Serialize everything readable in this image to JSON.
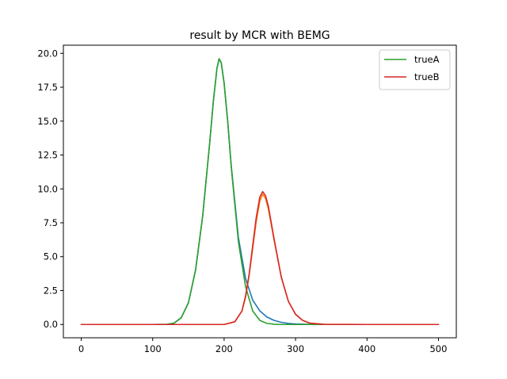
{
  "chart_data": {
    "type": "line",
    "title": "result by MCR with BEMG",
    "xlabel": "",
    "ylabel": "",
    "xlim": [
      -25,
      525
    ],
    "ylim": [
      -0.98,
      20.6
    ],
    "x_ticks": [
      0,
      100,
      200,
      300,
      400,
      500
    ],
    "x_tick_labels": [
      "0",
      "100",
      "200",
      "300",
      "400",
      "500"
    ],
    "y_ticks": [
      0,
      2.5,
      5,
      7.5,
      10,
      12.5,
      15,
      17.5,
      20
    ],
    "y_tick_labels": [
      "0.0",
      "2.5",
      "5.0",
      "7.5",
      "10.0",
      "12.5",
      "15.0",
      "17.5",
      "20.0"
    ],
    "grid": false,
    "legend_position": "top-right",
    "series": [
      {
        "color": "#1f77b4",
        "x": [
          0,
          100,
          120,
          130,
          140,
          150,
          160,
          170,
          180,
          185,
          190,
          193,
          196,
          200,
          205,
          210,
          220,
          230,
          240,
          250,
          260,
          270,
          280,
          290,
          300,
          320,
          340,
          360,
          400,
          500
        ],
        "y": [
          0.0,
          0.0,
          0.01,
          0.1,
          0.5,
          1.6,
          4.0,
          8.0,
          13.5,
          16.5,
          18.9,
          19.6,
          19.3,
          17.8,
          15.0,
          11.7,
          6.4,
          3.4,
          1.8,
          1.0,
          0.55,
          0.3,
          0.16,
          0.08,
          0.04,
          0.01,
          0.0,
          0.0,
          0.0,
          0.0
        ]
      },
      {
        "color": "#ff7f0e",
        "x": [
          0,
          200,
          215,
          225,
          230,
          235,
          240,
          245,
          250,
          254,
          258,
          262,
          270,
          280,
          290,
          300,
          310,
          320,
          340,
          400,
          500
        ],
        "y": [
          0.0,
          0.0,
          0.2,
          1.0,
          2.0,
          3.6,
          5.6,
          7.6,
          9.1,
          9.6,
          9.3,
          8.5,
          6.2,
          3.5,
          1.7,
          0.75,
          0.3,
          0.1,
          0.01,
          0.0,
          0.0
        ]
      },
      {
        "name": "trueA",
        "color": "#2ca02c",
        "x": [
          0,
          100,
          120,
          130,
          140,
          150,
          160,
          170,
          180,
          185,
          190,
          193,
          196,
          200,
          205,
          210,
          220,
          230,
          240,
          250,
          260,
          270,
          280,
          300,
          400,
          500
        ],
        "y": [
          0.0,
          0.0,
          0.01,
          0.1,
          0.5,
          1.6,
          4.0,
          8.0,
          13.5,
          16.5,
          18.9,
          19.6,
          19.3,
          17.8,
          15.0,
          11.6,
          6.1,
          2.8,
          1.0,
          0.3,
          0.08,
          0.02,
          0.0,
          0.0,
          0.0,
          0.0
        ]
      },
      {
        "name": "trueB",
        "color": "#d62728",
        "x": [
          0,
          200,
          215,
          225,
          230,
          235,
          240,
          245,
          250,
          254,
          258,
          262,
          270,
          280,
          290,
          300,
          310,
          320,
          340,
          400,
          500
        ],
        "y": [
          0.0,
          0.0,
          0.2,
          1.0,
          2.1,
          3.7,
          5.8,
          7.9,
          9.4,
          9.8,
          9.5,
          8.7,
          6.3,
          3.5,
          1.7,
          0.75,
          0.3,
          0.1,
          0.01,
          0.0,
          0.0
        ]
      }
    ]
  }
}
